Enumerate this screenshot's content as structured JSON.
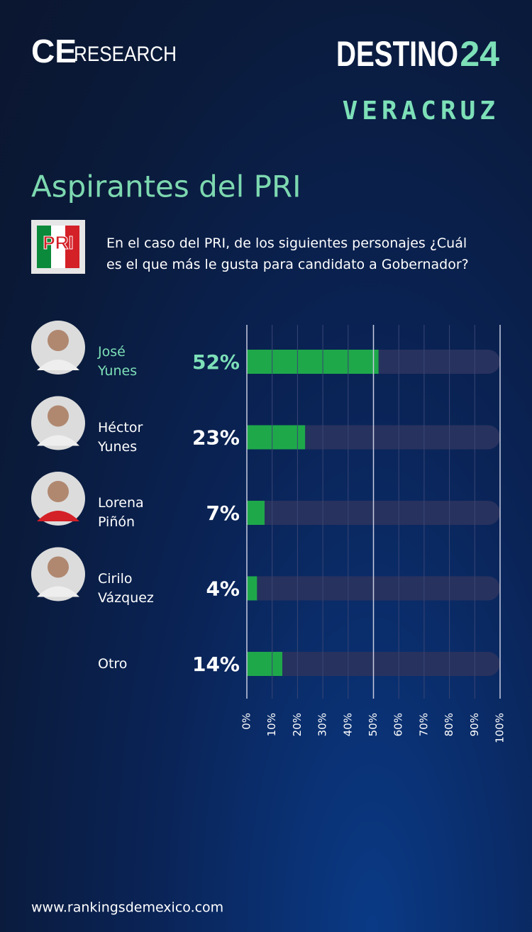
{
  "header": {
    "brand_ce": "CE",
    "brand_research": "RESEARCH",
    "destino": "DESTINO",
    "destino_number": "24",
    "region": "VERACRUZ",
    "party_logo": "PRI"
  },
  "chart_data": {
    "type": "bar",
    "orientation": "horizontal",
    "title": "Aspirantes del PRI",
    "subtitle": "En el caso del PRI, de los siguientes personajes ¿Cuál es el que más le gusta para candidato a Gobernador?",
    "categories": [
      "José Yunes",
      "Héctor Yunes",
      "Lorena Piñón",
      "Cirilo Vázquez",
      "Otro"
    ],
    "values": [
      52,
      23,
      7,
      4,
      14
    ],
    "value_labels": [
      "52%",
      "23%",
      "7%",
      "4%",
      "14%"
    ],
    "color": "#1ea84a",
    "xlim": [
      0,
      100
    ],
    "xticks": [
      {
        "value": 0,
        "label": "0%"
      },
      {
        "value": 10,
        "label": "10%"
      },
      {
        "value": 20,
        "label": "20%"
      },
      {
        "value": 30,
        "label": "30%"
      },
      {
        "value": 40,
        "label": "40%"
      },
      {
        "value": 50,
        "label": "50%"
      },
      {
        "value": 60,
        "label": "60%"
      },
      {
        "value": 70,
        "label": "70%"
      },
      {
        "value": 80,
        "label": "80%"
      },
      {
        "value": 90,
        "label": "90%"
      },
      {
        "value": 100,
        "label": "100%"
      }
    ],
    "grid": true
  },
  "footer": {
    "url": "www.rankingsdemexico.com"
  }
}
